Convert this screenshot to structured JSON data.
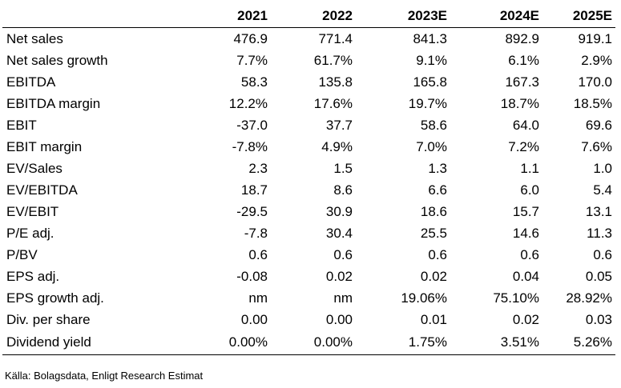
{
  "table": {
    "headers": [
      "",
      "2021",
      "2022",
      "2023E",
      "2024E",
      "2025E"
    ],
    "rows": [
      {
        "label": "Net sales",
        "values": [
          "476.9",
          "771.4",
          "841.3",
          "892.9",
          "919.1"
        ]
      },
      {
        "label": "Net sales growth",
        "values": [
          "7.7%",
          "61.7%",
          "9.1%",
          "6.1%",
          "2.9%"
        ]
      },
      {
        "label": "EBITDA",
        "values": [
          "58.3",
          "135.8",
          "165.8",
          "167.3",
          "170.0"
        ]
      },
      {
        "label": "EBITDA margin",
        "values": [
          "12.2%",
          "17.6%",
          "19.7%",
          "18.7%",
          "18.5%"
        ]
      },
      {
        "label": "EBIT",
        "values": [
          "-37.0",
          "37.7",
          "58.6",
          "64.0",
          "69.6"
        ]
      },
      {
        "label": "EBIT margin",
        "values": [
          "-7.8%",
          "4.9%",
          "7.0%",
          "7.2%",
          "7.6%"
        ]
      },
      {
        "label": "EV/Sales",
        "values": [
          "2.3",
          "1.5",
          "1.3",
          "1.1",
          "1.0"
        ]
      },
      {
        "label": "EV/EBITDA",
        "values": [
          "18.7",
          "8.6",
          "6.6",
          "6.0",
          "5.4"
        ]
      },
      {
        "label": "EV/EBIT",
        "values": [
          "-29.5",
          "30.9",
          "18.6",
          "15.7",
          "13.1"
        ]
      },
      {
        "label": "P/E adj.",
        "values": [
          "-7.8",
          "30.4",
          "25.5",
          "14.6",
          "11.3"
        ]
      },
      {
        "label": "P/BV",
        "values": [
          "0.6",
          "0.6",
          "0.6",
          "0.6",
          "0.6"
        ]
      },
      {
        "label": "EPS adj.",
        "values": [
          "-0.08",
          "0.02",
          "0.02",
          "0.04",
          "0.05"
        ]
      },
      {
        "label": "EPS growth adj.",
        "values": [
          "nm",
          "nm",
          "19.06%",
          "75.10%",
          "28.92%"
        ]
      },
      {
        "label": "Div. per share",
        "values": [
          "0.00",
          "0.00",
          "0.01",
          "0.02",
          "0.03"
        ]
      },
      {
        "label": "Dividend yield",
        "values": [
          "0.00%",
          "0.00%",
          "1.75%",
          "3.51%",
          "5.26%"
        ]
      }
    ]
  },
  "source": "Källa: Bolagsdata, Enligt Research Estimat"
}
